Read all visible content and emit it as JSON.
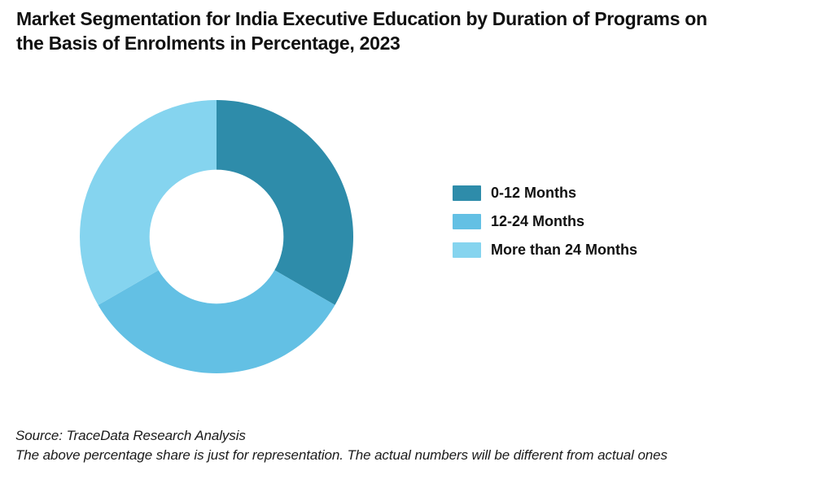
{
  "title": {
    "lines": [
      "Market Segmentation for India Executive Education by Duration of Programs on",
      "the Basis of Enrolments in Percentage, 2023"
    ]
  },
  "chart_data": {
    "type": "pie",
    "subtype": "donut",
    "title": "Market Segmentation for India Executive Education by Duration of Programs on the Basis of Enrolments in Percentage, 2023",
    "categories": [
      "0-12 Months",
      "12-24 Months",
      "More than 24 Months"
    ],
    "values": [
      33.33,
      33.33,
      33.34
    ],
    "unit": "percent",
    "colors": [
      "#2e8caa",
      "#63c0e4",
      "#85d4ef"
    ],
    "start_angle_deg": 0,
    "direction": "clockwise",
    "inner_radius_ratio": 0.49,
    "legend_position": "right",
    "data_labels": "none"
  },
  "legend": {
    "items": [
      {
        "label": "0-12 Months",
        "color": "#2e8caa"
      },
      {
        "label": "12-24 Months",
        "color": "#63c0e4"
      },
      {
        "label": "More than 24 Months",
        "color": "#85d4ef"
      }
    ]
  },
  "footer": {
    "source": "Source: TraceData Research Analysis",
    "disclaimer": "The above percentage share is just for representation. The actual numbers will be different from actual ones"
  }
}
